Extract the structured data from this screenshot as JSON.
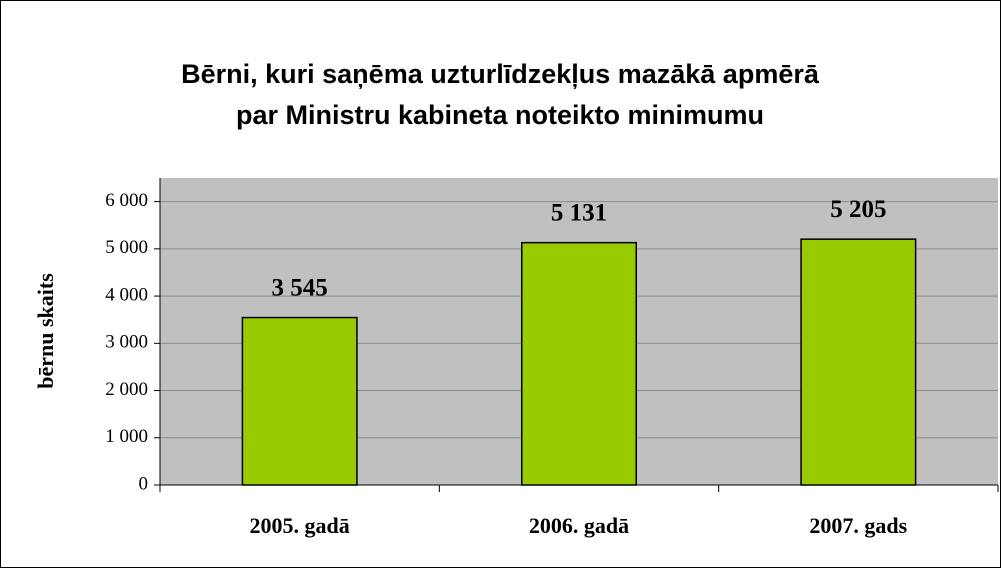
{
  "chart_data": {
    "type": "bar",
    "title": [
      "Bērni, kuri saņēma uzturlīdzekļus mazākā apmērā",
      "par Ministru kabineta noteikto minimumu"
    ],
    "y_label": "bērnu skaits",
    "categories": [
      "2005. gadā",
      "2006. gadā",
      "2007. gads"
    ],
    "values": [
      3545,
      5131,
      5205
    ],
    "value_labels": [
      "3 545",
      "5 131",
      "5 205"
    ],
    "color": "#99cc00",
    "ylim": [
      0,
      6500
    ],
    "yticks": [
      0,
      {
        "value": 1000,
        "label": "1 000"
      },
      {
        "value": 2000,
        "label": "2 000"
      },
      {
        "value": 3000,
        "label": "3 000"
      },
      {
        "value": 4000,
        "label": "4 000"
      },
      {
        "value": 5000,
        "label": "5 000"
      },
      {
        "value": 6000,
        "label": "6 000"
      }
    ],
    "grid": true
  }
}
